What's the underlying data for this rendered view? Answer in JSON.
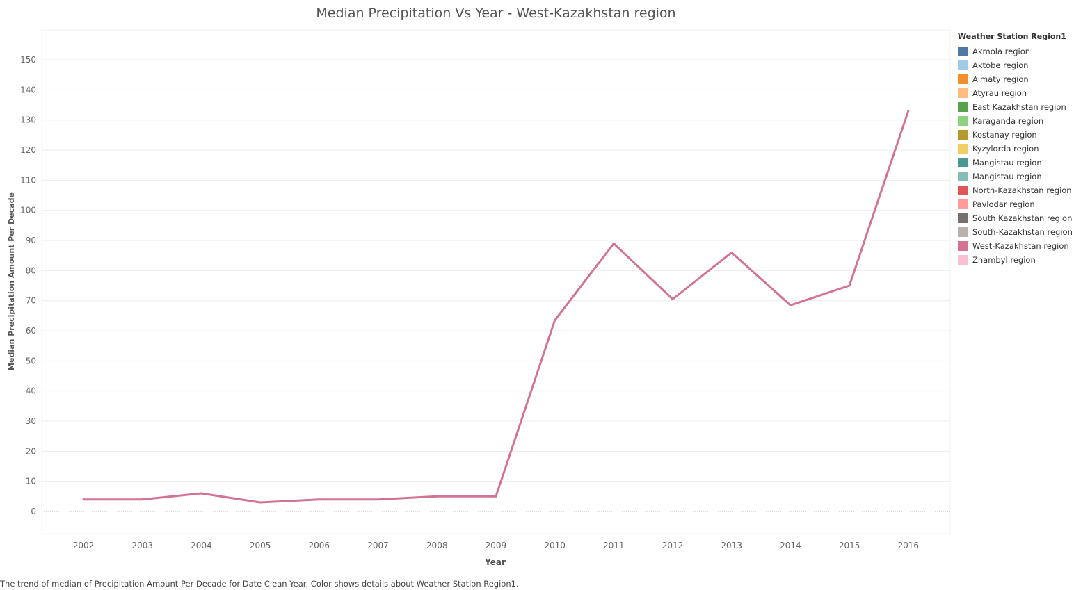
{
  "chart_data": {
    "type": "line",
    "title": "Median Precipitation Vs Year  - West-Kazakhstan region",
    "xlabel": "Year",
    "ylabel": "Median Precipitation Amount Per Decade",
    "x": [
      "2002",
      "2003",
      "2004",
      "2005",
      "2006",
      "2007",
      "2008",
      "2009",
      "2010",
      "2011",
      "2012",
      "2013",
      "2014",
      "2015",
      "2016"
    ],
    "series": [
      {
        "name": "West-Kazakhstan region",
        "values": [
          4,
          4,
          6,
          3,
          4,
          4,
          5,
          5,
          63.5,
          89,
          70.5,
          86,
          68.5,
          75,
          133
        ]
      }
    ],
    "ylim": [
      -8,
      160
    ],
    "yticks": [
      0,
      10,
      20,
      30,
      40,
      50,
      60,
      70,
      80,
      90,
      100,
      110,
      120,
      130,
      140,
      150
    ],
    "grid": true,
    "legend_position": "right",
    "legend": {
      "title": "Weather Station Region1",
      "items": [
        {
          "label": "Akmola region",
          "color": "#4e79a7"
        },
        {
          "label": "Aktobe region",
          "color": "#a0cbe8"
        },
        {
          "label": "Almaty region",
          "color": "#f28e2b"
        },
        {
          "label": "Atyrau region",
          "color": "#ffbe7d"
        },
        {
          "label": "East Kazakhstan region",
          "color": "#59a14f"
        },
        {
          "label": "Karaganda region",
          "color": "#8cd17d"
        },
        {
          "label": "Kostanay region",
          "color": "#b6992d"
        },
        {
          "label": "Kyzylorda region",
          "color": "#f1ce63"
        },
        {
          "label": "Mangistau  region",
          "color": "#499894"
        },
        {
          "label": "Mangistau region",
          "color": "#86bcb6"
        },
        {
          "label": "North-Kazakhstan region",
          "color": "#e15759"
        },
        {
          "label": "Pavlodar region",
          "color": "#ff9d9a"
        },
        {
          "label": "South Kazakhstan region",
          "color": "#79706e"
        },
        {
          "label": "South-Kazakhstan region",
          "color": "#bab0ac"
        },
        {
          "label": "West-Kazakhstan region",
          "color": "#d37295"
        },
        {
          "label": "Zhambyl region",
          "color": "#fabfd2"
        }
      ]
    },
    "line_color": "#d37295"
  },
  "caption": "The trend of median of Precipitation Amount Per Decade for Date Clean Year.  Color shows details about Weather Station Region1."
}
